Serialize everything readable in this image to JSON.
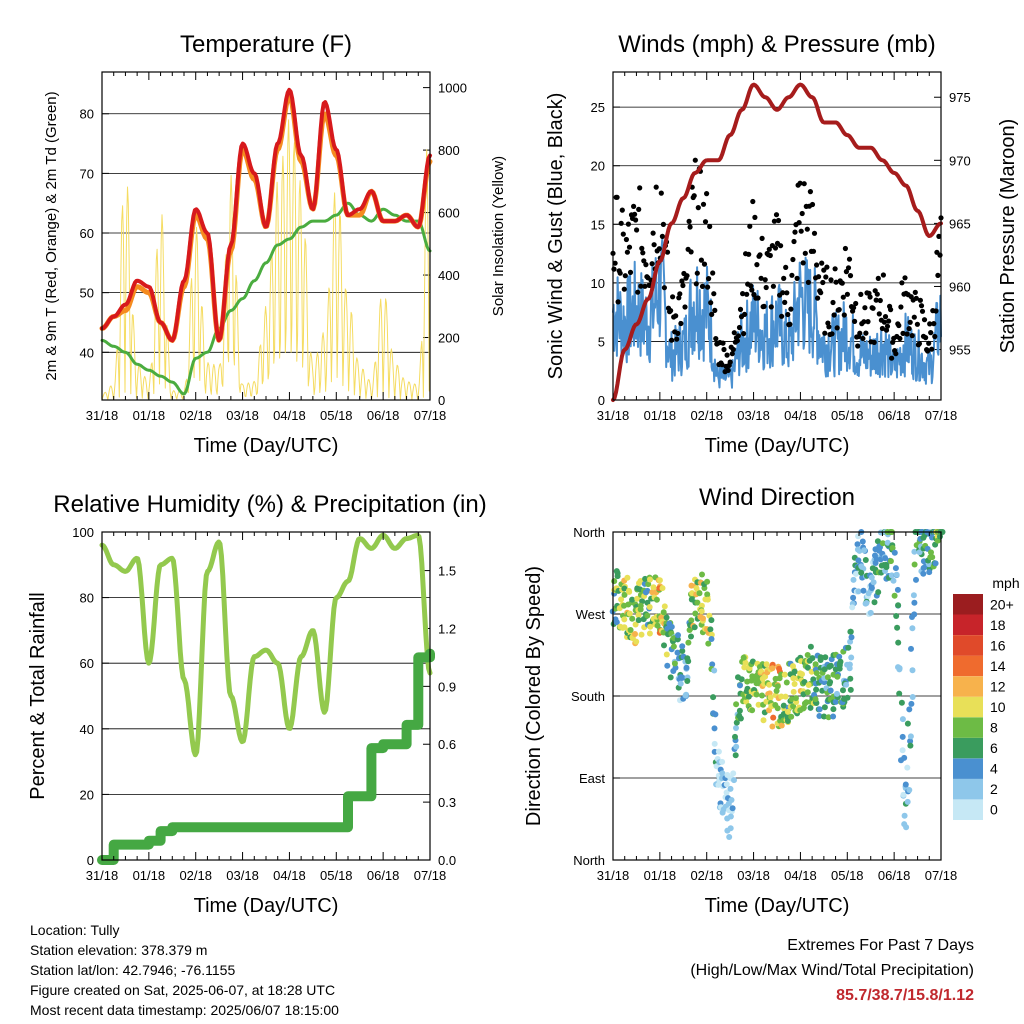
{
  "x_ticks": [
    "31/18",
    "01/18",
    "02/18",
    "03/18",
    "04/18",
    "05/18",
    "06/18",
    "07/18"
  ],
  "x_label": "Time (Day/UTC)",
  "colors": {
    "temp_red": "#d7191c",
    "temp_orange": "#f58b1f",
    "dewpoint": "#4aac3f",
    "solar": "#f5dc62",
    "gust": "#000000",
    "wind": "#4a90d0",
    "pressure": "#a61c1c",
    "rh": "#93c94e",
    "precip": "#45a843"
  },
  "chart_data": [
    {
      "type": "line",
      "title": "Temperature (F)",
      "xlabel": "Time (Day/UTC)",
      "ylabel": "2m & 9m T (Red, Orange) & 2m Td (Green)",
      "y2label": "Solar Insolation (Yellow)",
      "ylim": [
        32,
        87
      ],
      "y_ticks": [
        40,
        50,
        60,
        70,
        80
      ],
      "y2lim": [
        0,
        1050
      ],
      "y2_ticks": [
        0,
        200,
        400,
        600,
        800,
        1000
      ],
      "x": [
        0,
        0.25,
        0.5,
        0.75,
        1,
        1.25,
        1.5,
        1.75,
        2,
        2.25,
        2.5,
        2.75,
        3,
        3.25,
        3.5,
        3.75,
        4,
        4.25,
        4.5,
        4.75,
        5,
        5.25,
        5.5,
        5.75,
        6,
        6.25,
        6.5,
        6.75,
        7
      ],
      "series": [
        {
          "values": [
            44,
            46,
            48,
            52,
            51,
            45,
            42,
            52,
            64,
            60,
            42,
            58,
            75,
            70,
            61,
            75,
            84,
            73,
            64,
            82,
            74,
            63,
            64,
            67,
            62,
            62,
            63,
            61,
            73
          ]
        },
        {
          "values": [
            44,
            46,
            47,
            51,
            50,
            45,
            42,
            51,
            63,
            59,
            42,
            57,
            74,
            69,
            61,
            74,
            83,
            72,
            64,
            80,
            73,
            63,
            63,
            67,
            62,
            62,
            63,
            61,
            72
          ]
        },
        {
          "values": [
            42,
            41,
            40,
            38,
            37,
            36,
            35,
            33,
            39,
            40,
            44,
            47,
            49,
            52,
            55,
            58,
            59,
            61,
            62,
            62,
            63,
            65,
            63,
            62,
            64,
            63,
            62,
            62,
            57
          ]
        },
        {
          "values": [
            20,
            50,
            740,
            120,
            60,
            620,
            30,
            30,
            560,
            120,
            110,
            720,
            50,
            60,
            300,
            700,
            900,
            700,
            120,
            220,
            690,
            330,
            110,
            60,
            360,
            120,
            60,
            50,
            1000
          ]
        }
      ]
    },
    {
      "type": "scatter",
      "title": "Winds (mph) & Pressure (mb)",
      "xlabel": "Time (Day/UTC)",
      "ylabel": "Sonic Wind & Gust (Blue, Black)",
      "y2label": "Station Pressure (Maroon)",
      "ylim": [
        0,
        28
      ],
      "y_ticks": [
        0,
        5,
        10,
        15,
        20,
        25
      ],
      "y2lim": [
        951,
        977
      ],
      "y2_ticks": [
        955,
        960,
        965,
        970,
        975
      ],
      "x": [
        0,
        0.25,
        0.5,
        0.75,
        1,
        1.25,
        1.5,
        1.75,
        2,
        2.25,
        2.5,
        2.75,
        3,
        3.25,
        3.5,
        3.75,
        4,
        4.25,
        4.5,
        4.75,
        5,
        5.25,
        5.5,
        5.75,
        6,
        6.25,
        6.5,
        6.75,
        7
      ],
      "series": [
        {
          "values": [
            16,
            14,
            16,
            15,
            20,
            8,
            10,
            18,
            16,
            5,
            4,
            10,
            15,
            12,
            14,
            10,
            18,
            16,
            10,
            10,
            13,
            8,
            8,
            10,
            6,
            10,
            8,
            6,
            14
          ]
        },
        {
          "values": [
            8,
            7,
            8,
            7,
            10,
            4,
            5,
            9,
            8,
            2,
            2,
            5,
            7,
            6,
            7,
            5,
            9,
            8,
            5,
            5,
            6,
            4,
            4,
            5,
            3,
            5,
            4,
            3,
            7
          ]
        },
        {
          "values": [
            951,
            955,
            957,
            959,
            962,
            965,
            967,
            969,
            970,
            970,
            972,
            974,
            976,
            975,
            974,
            975,
            976,
            975,
            973,
            973,
            972,
            971,
            971,
            970,
            969,
            968,
            966,
            964,
            965
          ]
        }
      ]
    },
    {
      "type": "line",
      "title": "Relative Humidity (%) & Precipitation (in)",
      "xlabel": "Time (Day/UTC)",
      "ylabel": "Percent & Total Rainfall",
      "ylim": [
        0,
        100
      ],
      "y_ticks": [
        0,
        20,
        40,
        60,
        80,
        100
      ],
      "y2lim": [
        0,
        1.7
      ],
      "y2_ticks": [
        "0.0",
        "0.3",
        "0.6",
        "0.9",
        "1.2",
        "1.5"
      ],
      "x": [
        0,
        0.25,
        0.5,
        0.75,
        1,
        1.25,
        1.5,
        1.75,
        2,
        2.25,
        2.5,
        2.75,
        3,
        3.25,
        3.5,
        3.75,
        4,
        4.25,
        4.5,
        4.75,
        5,
        5.25,
        5.5,
        5.75,
        6,
        6.25,
        6.5,
        6.75,
        7
      ],
      "series": [
        {
          "values": [
            96,
            90,
            88,
            92,
            60,
            90,
            92,
            55,
            32,
            88,
            97,
            50,
            36,
            62,
            64,
            60,
            40,
            62,
            70,
            45,
            80,
            85,
            98,
            95,
            99,
            95,
            98,
            99,
            57
          ]
        },
        {
          "values": [
            0,
            0.08,
            0.08,
            0.08,
            0.1,
            0.15,
            0.17,
            0.17,
            0.17,
            0.17,
            0.17,
            0.17,
            0.17,
            0.17,
            0.17,
            0.17,
            0.17,
            0.17,
            0.17,
            0.17,
            0.17,
            0.33,
            0.33,
            0.58,
            0.6,
            0.6,
            0.7,
            1.05,
            1.07
          ]
        }
      ]
    },
    {
      "type": "scatter",
      "title": "Wind Direction",
      "xlabel": "Time (Day/UTC)",
      "ylabel": "Direction (Colored By Speed)",
      "y_ticks": [
        "North",
        "East",
        "South",
        "West",
        "North"
      ],
      "colorbar_title": "mph",
      "colorbar_labels": [
        "0",
        "2",
        "4",
        "6",
        "8",
        "10",
        "12",
        "14",
        "16",
        "18",
        "20+"
      ],
      "colorbar_colors": [
        "#c6e8f5",
        "#8ec7ea",
        "#4a90d0",
        "#3a9c5e",
        "#6dbb45",
        "#e8e058",
        "#f7b24c",
        "#ef6b2e",
        "#e04a2a",
        "#c7242a",
        "#9b1d1f"
      ],
      "x": [
        0,
        0.25,
        0.5,
        0.75,
        1,
        1.25,
        1.5,
        1.75,
        2,
        2.25,
        2.5,
        2.75,
        3,
        3.25,
        3.5,
        3.75,
        4,
        4.25,
        4.5,
        4.75,
        5,
        5.25,
        5.5,
        5.75,
        6,
        6.25,
        6.5,
        6.75,
        7
      ],
      "values": [
        290,
        280,
        270,
        275,
        280,
        230,
        200,
        290,
        280,
        90,
        60,
        200,
        190,
        185,
        180,
        185,
        190,
        200,
        190,
        190,
        200,
        330,
        300,
        340,
        330,
        60,
        350,
        340,
        360
      ],
      "speeds": [
        8,
        10,
        10,
        8,
        12,
        6,
        4,
        10,
        10,
        2,
        2,
        8,
        10,
        10,
        12,
        8,
        10,
        8,
        6,
        6,
        6,
        4,
        4,
        6,
        6,
        4,
        6,
        6,
        10
      ]
    }
  ],
  "info": {
    "location": "Location: Tully",
    "elevation": "Station elevation: 378.379 m",
    "latlon": "Station lat/lon: 42.7946; -76.1155",
    "created": "Figure created on Sat, 2025-06-07, at 18:28 UTC",
    "recent": "Most recent data timestamp: 2025/06/07 18:15:00"
  },
  "extremes": {
    "title": "Extremes For Past 7 Days",
    "subtitle": "(High/Low/Max Wind/Total Precipitation)",
    "values": "85.7/38.7/15.8/1.12"
  }
}
